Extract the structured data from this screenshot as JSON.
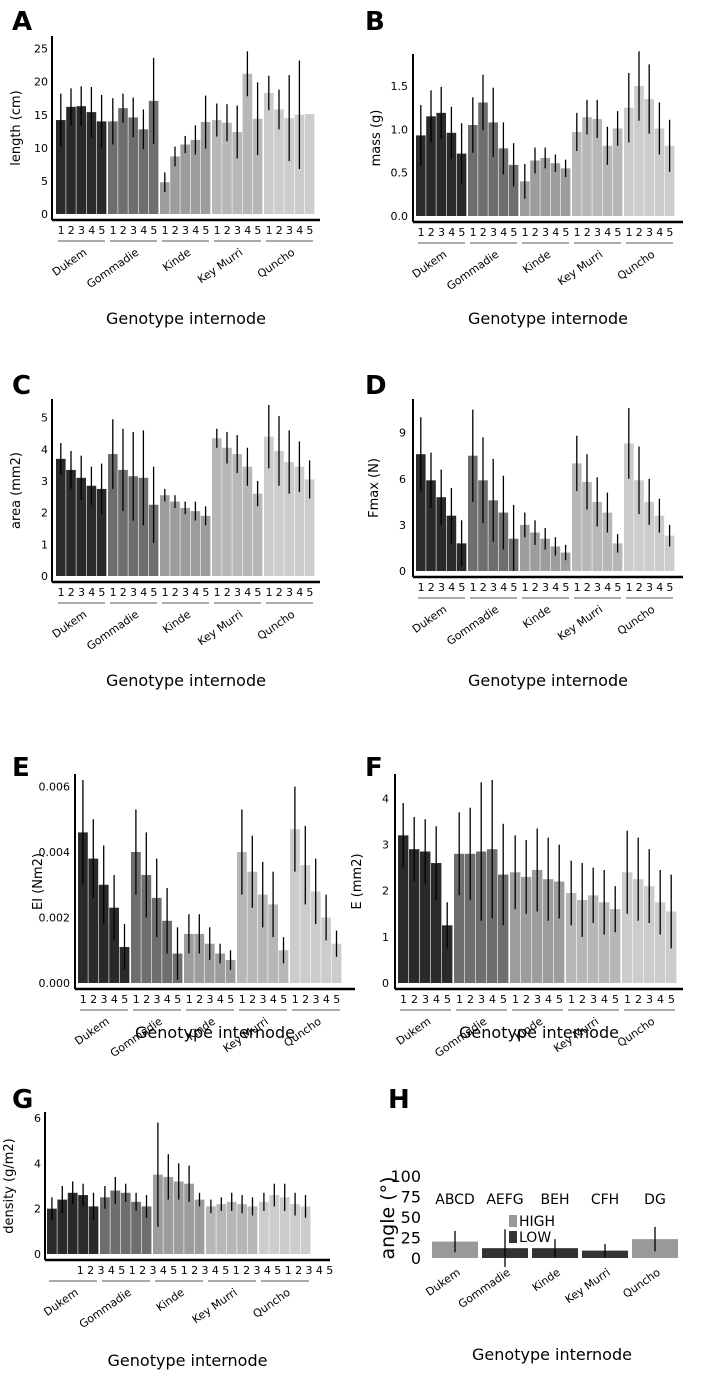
{
  "figure": {
    "xlabel": "Genotype internode",
    "genotypes": [
      "Dukem",
      "Gommadie",
      "Kinde",
      "Key Murri",
      "Quncho"
    ],
    "internodes": [
      "1",
      "2",
      "3",
      "4",
      "5"
    ],
    "colors": {
      "Dukem": "#2a2a2a",
      "Gommadie": "#6e6e6e",
      "Kinde": "#9d9d9d",
      "Key Murri": "#b7b7b7",
      "Quncho": "#cccccc"
    }
  },
  "chart_data": [
    {
      "panel": "A",
      "type": "bar",
      "ylabel": "length (cm)",
      "ylim": [
        0,
        26
      ],
      "yticks": [
        "0",
        "5",
        "10",
        "15",
        "20",
        "25"
      ],
      "ytick_values": [
        0,
        5,
        10,
        15,
        20,
        25
      ],
      "series": [
        {
          "genotype": "Dukem",
          "values": [
            14.2,
            16.2,
            16.3,
            15.4,
            14.0
          ],
          "errors": [
            4.0,
            2.8,
            3.0,
            3.8,
            4.0
          ]
        },
        {
          "genotype": "Gommadie",
          "values": [
            14.0,
            16.0,
            14.6,
            12.8,
            17.1
          ],
          "errors": [
            3.5,
            2.2,
            3.0,
            3.0,
            6.5
          ]
        },
        {
          "genotype": "Kinde",
          "values": [
            4.8,
            8.7,
            10.5,
            11.2,
            13.9
          ],
          "errors": [
            1.5,
            1.5,
            1.3,
            2.2,
            4.0
          ]
        },
        {
          "genotype": "Key Murri",
          "values": [
            14.2,
            13.8,
            12.4,
            21.2,
            14.4
          ],
          "errors": [
            2.5,
            2.8,
            4.0,
            3.4,
            5.5
          ]
        },
        {
          "genotype": "Quncho",
          "values": [
            18.3,
            15.8,
            14.5,
            15.0,
            15.1
          ],
          "errors": [
            2.6,
            3.0,
            6.5,
            8.2,
            0
          ]
        }
      ]
    },
    {
      "panel": "B",
      "type": "bar",
      "ylabel": "mass (g)",
      "ylim": [
        0,
        1.8
      ],
      "yticks": [
        "0.0",
        "0.5",
        "1.0",
        "1.5"
      ],
      "ytick_values": [
        0,
        0.5,
        1.0,
        1.5
      ],
      "series": [
        {
          "genotype": "Dukem",
          "values": [
            0.93,
            1.15,
            1.19,
            0.96,
            0.72
          ],
          "errors": [
            0.35,
            0.3,
            0.3,
            0.3,
            0.35
          ]
        },
        {
          "genotype": "Gommadie",
          "values": [
            1.05,
            1.31,
            1.08,
            0.78,
            0.59
          ],
          "errors": [
            0.32,
            0.32,
            0.4,
            0.3,
            0.25
          ]
        },
        {
          "genotype": "Kinde",
          "values": [
            0.4,
            0.64,
            0.67,
            0.61,
            0.55
          ],
          "errors": [
            0.2,
            0.15,
            0.12,
            0.1,
            0.1
          ]
        },
        {
          "genotype": "Key Murri",
          "values": [
            0.97,
            1.14,
            1.12,
            0.81,
            1.01
          ],
          "errors": [
            0.22,
            0.2,
            0.22,
            0.22,
            0.2
          ]
        },
        {
          "genotype": "Quncho",
          "values": [
            1.25,
            1.5,
            1.35,
            1.01,
            0.81
          ],
          "errors": [
            0.4,
            0.4,
            0.4,
            0.3,
            0.3
          ]
        }
      ]
    },
    {
      "panel": "C",
      "type": "bar",
      "ylabel": "area (mm2)",
      "ylim": [
        0,
        5.4
      ],
      "yticks": [
        "0",
        "1",
        "2",
        "3",
        "4",
        "5"
      ],
      "ytick_values": [
        0,
        1,
        2,
        3,
        4,
        5
      ],
      "series": [
        {
          "genotype": "Dukem",
          "values": [
            3.7,
            3.35,
            3.1,
            2.85,
            2.75
          ],
          "errors": [
            0.5,
            0.6,
            0.7,
            0.6,
            0.8
          ]
        },
        {
          "genotype": "Gommadie",
          "values": [
            3.85,
            3.35,
            3.15,
            3.1,
            2.25
          ],
          "errors": [
            1.1,
            1.3,
            1.4,
            1.5,
            1.2
          ]
        },
        {
          "genotype": "Kinde",
          "values": [
            2.55,
            2.35,
            2.15,
            2.05,
            1.9
          ],
          "errors": [
            0.2,
            0.2,
            0.2,
            0.3,
            0.3
          ]
        },
        {
          "genotype": "Key Murri",
          "values": [
            4.35,
            4.05,
            3.85,
            3.45,
            2.6
          ],
          "errors": [
            0.3,
            0.5,
            0.6,
            0.6,
            0.4
          ]
        },
        {
          "genotype": "Quncho",
          "values": [
            4.4,
            3.95,
            3.6,
            3.45,
            3.05
          ],
          "errors": [
            1.0,
            1.1,
            1.0,
            0.8,
            0.6
          ]
        }
      ]
    },
    {
      "panel": "D",
      "type": "bar",
      "ylabel": "Fmax (N)",
      "ylim": [
        0,
        10.8
      ],
      "yticks": [
        "0",
        "3",
        "6",
        "9"
      ],
      "ytick_values": [
        0,
        3,
        6,
        9
      ],
      "series": [
        {
          "genotype": "Dukem",
          "values": [
            7.6,
            5.9,
            4.8,
            3.6,
            1.8
          ],
          "errors": [
            2.4,
            1.8,
            1.8,
            1.8,
            1.5
          ]
        },
        {
          "genotype": "Gommadie",
          "values": [
            7.5,
            5.9,
            4.6,
            3.8,
            2.1
          ],
          "errors": [
            3.0,
            2.8,
            2.7,
            2.4,
            2.2
          ]
        },
        {
          "genotype": "Kinde",
          "values": [
            3.0,
            2.5,
            2.1,
            1.6,
            1.2
          ],
          "errors": [
            0.8,
            0.8,
            0.7,
            0.6,
            0.5
          ]
        },
        {
          "genotype": "Key Murri",
          "values": [
            7.0,
            5.8,
            4.5,
            3.8,
            1.8
          ],
          "errors": [
            1.8,
            1.8,
            1.6,
            1.3,
            0.6
          ]
        },
        {
          "genotype": "Quncho",
          "values": [
            8.3,
            5.9,
            4.5,
            3.6,
            2.3
          ],
          "errors": [
            2.3,
            2.2,
            1.5,
            1.1,
            0.7
          ]
        }
      ]
    },
    {
      "panel": "E",
      "type": "bar",
      "ylabel": "EI (Nm2)",
      "ylim": [
        0,
        0.0062
      ],
      "yticks": [
        "0.000",
        "0.002",
        "0.004",
        "0.006"
      ],
      "ytick_values": [
        0,
        0.002,
        0.004,
        0.006
      ],
      "series": [
        {
          "genotype": "Dukem",
          "values": [
            0.0046,
            0.0038,
            0.003,
            0.0023,
            0.0011
          ],
          "errors": [
            0.0016,
            0.0012,
            0.0012,
            0.001,
            0.0007
          ]
        },
        {
          "genotype": "Gommadie",
          "values": [
            0.004,
            0.0033,
            0.0026,
            0.0019,
            0.0009
          ],
          "errors": [
            0.0013,
            0.0013,
            0.0012,
            0.001,
            0.0008
          ]
        },
        {
          "genotype": "Kinde",
          "values": [
            0.0015,
            0.0015,
            0.0012,
            0.0009,
            0.0007
          ],
          "errors": [
            0.0006,
            0.0006,
            0.0005,
            0.0003,
            0.0003
          ]
        },
        {
          "genotype": "Key Murri",
          "values": [
            0.004,
            0.0034,
            0.0027,
            0.0024,
            0.001
          ],
          "errors": [
            0.0013,
            0.0011,
            0.001,
            0.001,
            0.0004
          ]
        },
        {
          "genotype": "Quncho",
          "values": [
            0.0047,
            0.0036,
            0.0028,
            0.002,
            0.0012
          ],
          "errors": [
            0.0013,
            0.0012,
            0.001,
            0.0007,
            0.0004
          ]
        }
      ]
    },
    {
      "panel": "F",
      "type": "bar",
      "ylabel": "E (mm2)",
      "ylim": [
        0,
        4.4
      ],
      "yticks": [
        "0",
        "1",
        "2",
        "3",
        "4"
      ],
      "ytick_values": [
        0,
        1,
        2,
        3,
        4
      ],
      "series": [
        {
          "genotype": "Dukem",
          "values": [
            3.2,
            2.9,
            2.85,
            2.6,
            1.25
          ],
          "errors": [
            0.7,
            0.7,
            0.7,
            0.8,
            0.5
          ]
        },
        {
          "genotype": "Gommadie",
          "values": [
            2.8,
            2.8,
            2.85,
            2.9,
            2.35
          ],
          "errors": [
            0.9,
            1.0,
            1.5,
            1.5,
            1.1
          ]
        },
        {
          "genotype": "Kinde",
          "values": [
            2.4,
            2.3,
            2.45,
            2.25,
            2.2
          ],
          "errors": [
            0.8,
            0.8,
            0.9,
            0.9,
            0.8
          ]
        },
        {
          "genotype": "Key Murri",
          "values": [
            1.95,
            1.8,
            1.9,
            1.75,
            1.6
          ],
          "errors": [
            0.7,
            0.8,
            0.6,
            0.7,
            0.5
          ]
        },
        {
          "genotype": "Quncho",
          "values": [
            2.4,
            2.25,
            2.1,
            1.75,
            1.55
          ],
          "errors": [
            0.9,
            0.9,
            0.8,
            0.7,
            0.8
          ]
        }
      ]
    },
    {
      "panel": "G",
      "type": "bar",
      "ylabel": "density (g/m2)",
      "ylim": [
        0,
        6
      ],
      "yticks": [
        "0",
        "2",
        "4",
        "6"
      ],
      "ytick_values": [
        0,
        2,
        4,
        6
      ],
      "tick_labels_row": [
        "1",
        "2",
        "3",
        "4",
        "5",
        "1",
        "2",
        "3",
        "4",
        "5",
        "1",
        "2",
        "3",
        "4",
        "5",
        "1",
        "2",
        "3",
        "4",
        "5",
        "1",
        "2",
        "3",
        "4",
        "5"
      ],
      "series": [
        {
          "genotype": "Dukem",
          "values": [
            2.0,
            2.4,
            2.7,
            2.6,
            2.1
          ],
          "errors": [
            0.5,
            0.6,
            0.5,
            0.5,
            0.6
          ]
        },
        {
          "genotype": "Gommadie",
          "values": [
            2.5,
            2.8,
            2.7,
            2.3,
            2.1
          ],
          "errors": [
            0.5,
            0.6,
            0.4,
            0.4,
            0.5
          ]
        },
        {
          "genotype": "Kinde",
          "values": [
            3.5,
            3.4,
            3.2,
            3.1,
            2.4
          ],
          "errors": [
            2.3,
            1.0,
            0.8,
            0.8,
            0.3
          ]
        },
        {
          "genotype": "Key Murri",
          "values": [
            2.1,
            2.2,
            2.3,
            2.2,
            2.1
          ],
          "errors": [
            0.3,
            0.3,
            0.4,
            0.4,
            0.4
          ]
        },
        {
          "genotype": "Quncho",
          "values": [
            2.3,
            2.6,
            2.5,
            2.2,
            2.1
          ],
          "errors": [
            0.4,
            0.5,
            0.6,
            0.5,
            0.5
          ]
        }
      ]
    },
    {
      "panel": "H",
      "type": "bar",
      "ylabel": "angle (°)",
      "ylim": [
        -15,
        100
      ],
      "yticks": [
        "0",
        "25",
        "50",
        "75",
        "100"
      ],
      "ytick_values": [
        0,
        25,
        50,
        75,
        100
      ],
      "categories": [
        "Dukem",
        "Gommadie",
        "Kinde",
        "Key Murri",
        "Quncho"
      ],
      "values": [
        20,
        12,
        12,
        9,
        23
      ],
      "errors": [
        13,
        23,
        11,
        8,
        15
      ],
      "levels": [
        "HIGH",
        "LOW",
        "LOW",
        "LOW",
        "HIGH"
      ],
      "letters": [
        "ABCD",
        "AEFG",
        "BEH",
        "CFH",
        "DG"
      ],
      "legend": [
        "HIGH",
        "LOW"
      ],
      "legend_colors": [
        "#999999",
        "#333333"
      ]
    }
  ]
}
